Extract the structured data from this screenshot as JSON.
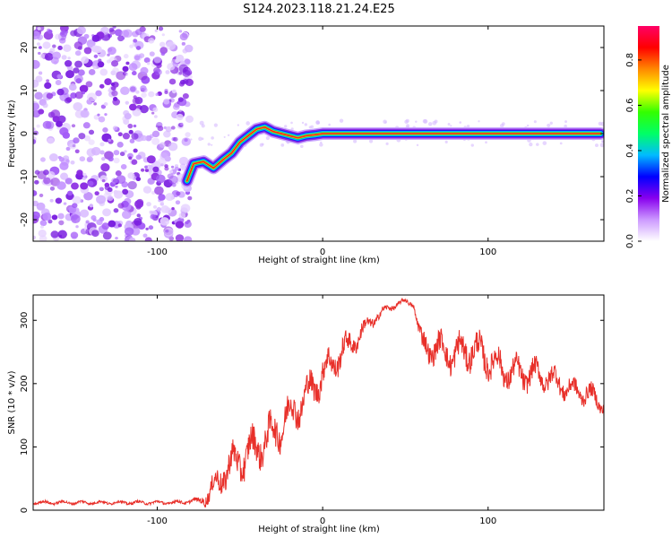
{
  "figure": {
    "title": "S124.2023.118.21.24.E25"
  },
  "chart_data": [
    {
      "type": "heatmap",
      "xlabel": "Height of straight line (km)",
      "ylabel": "Frequency (Hz)",
      "xlim": [
        -175,
        170
      ],
      "ylim": [
        -25,
        25
      ],
      "xticks": [
        -100,
        0,
        100
      ],
      "yticks": [
        -20,
        -10,
        0,
        10,
        20
      ],
      "grid": false,
      "noise_region": {
        "x_from": -175,
        "x_to": -80,
        "y_from": -25,
        "y_to": 25
      },
      "signal_ridge": {
        "x": [
          -82,
          -78,
          -72,
          -66,
          -60,
          -55,
          -50,
          -45,
          -40,
          -35,
          -30,
          -25,
          -20,
          -15,
          -10,
          -5,
          0,
          20,
          50,
          100,
          150,
          168
        ],
        "y": [
          -11,
          -7,
          -6.5,
          -8,
          -6,
          -4.5,
          -2,
          -0.5,
          1,
          1.5,
          0.5,
          0,
          -0.5,
          -1,
          -0.5,
          -0.3,
          0,
          0,
          0,
          0,
          0,
          0
        ]
      },
      "colorbar": {
        "label": "Normalized spectral amplitude",
        "min": 0.0,
        "max": 0.95,
        "ticks": [
          "0.0",
          "0.2",
          "0.4",
          "0.6",
          "0.8"
        ],
        "colors": [
          "#ffffff",
          "#cc99ff",
          "#8800ee",
          "#0000ff",
          "#00bbff",
          "#00ff66",
          "#33ff00",
          "#ffff00",
          "#ff8800",
          "#ff0000",
          "#ff0066"
        ]
      }
    },
    {
      "type": "line",
      "xlabel": "Height of straight line (km)",
      "ylabel": "SNR (10 * v/v)",
      "xlim": [
        -175,
        170
      ],
      "ylim": [
        0,
        340
      ],
      "xticks": [
        -100,
        0,
        100
      ],
      "yticks": [
        0,
        100,
        200,
        300
      ],
      "grid": false,
      "series": [
        {
          "color": "#e8302a",
          "x": [
            -175,
            -150,
            -120,
            -90,
            -75,
            -68,
            -60,
            -50,
            -40,
            -30,
            -20,
            -10,
            0,
            10,
            20,
            30,
            40,
            50,
            55,
            60,
            70,
            80,
            90,
            100,
            110,
            120,
            130,
            140,
            150,
            160,
            170
          ],
          "y": [
            12,
            12,
            12,
            12,
            15,
            25,
            60,
            80,
            100,
            120,
            150,
            180,
            215,
            245,
            270,
            300,
            320,
            330,
            325,
            260,
            255,
            245,
            255,
            240,
            220,
            215,
            215,
            205,
            190,
            185,
            165
          ],
          "amp": [
            4,
            4,
            4,
            4,
            6,
            25,
            40,
            45,
            45,
            45,
            45,
            40,
            40,
            35,
            25,
            15,
            8,
            6,
            6,
            30,
            35,
            40,
            40,
            40,
            35,
            35,
            30,
            30,
            25,
            25,
            20
          ]
        }
      ]
    }
  ]
}
